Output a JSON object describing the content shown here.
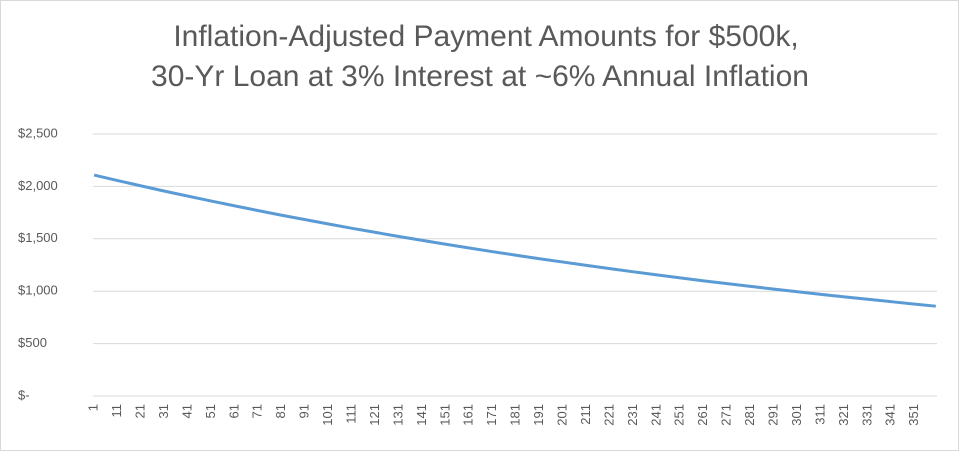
{
  "chart_data": {
    "type": "line",
    "title": [
      "Inflation-Adjusted Payment Amounts for $500k,",
      "30-Yr Loan at 3% Interest at ~6% Annual Inflation"
    ],
    "x": [
      1,
      11,
      21,
      31,
      41,
      51,
      61,
      71,
      81,
      91,
      101,
      111,
      121,
      131,
      141,
      151,
      161,
      171,
      181,
      191,
      201,
      211,
      221,
      231,
      241,
      251,
      261,
      271,
      281,
      291,
      301,
      311,
      321,
      331,
      341,
      351,
      360
    ],
    "series": [
      {
        "color": "#5b9bd5",
        "values": [
          2108,
          2056,
          2005,
          1955,
          1907,
          1860,
          1814,
          1769,
          1725,
          1683,
          1641,
          1600,
          1561,
          1522,
          1485,
          1448,
          1412,
          1377,
          1343,
          1310,
          1278,
          1246,
          1215,
          1185,
          1156,
          1127,
          1099,
          1072,
          1046,
          1020,
          995,
          970,
          946,
          923,
          900,
          877,
          857
        ]
      }
    ],
    "xlim": [
      0.5,
      360.5
    ],
    "xticks": [
      1,
      11,
      21,
      31,
      41,
      51,
      61,
      71,
      81,
      91,
      101,
      111,
      121,
      131,
      141,
      151,
      161,
      171,
      181,
      191,
      201,
      211,
      221,
      231,
      241,
      251,
      261,
      271,
      281,
      291,
      301,
      311,
      321,
      331,
      341,
      351
    ],
    "ylim": [
      0,
      2500
    ],
    "yticks": [
      {
        "value": 0,
        "label": "$-"
      },
      {
        "value": 500,
        "label": "$500"
      },
      {
        "value": 1000,
        "label": "$1,000"
      },
      {
        "value": 1500,
        "label": "$1,500"
      },
      {
        "value": 2000,
        "label": "$2,000"
      },
      {
        "value": 2500,
        "label": "$2,500"
      }
    ],
    "grid": true
  }
}
